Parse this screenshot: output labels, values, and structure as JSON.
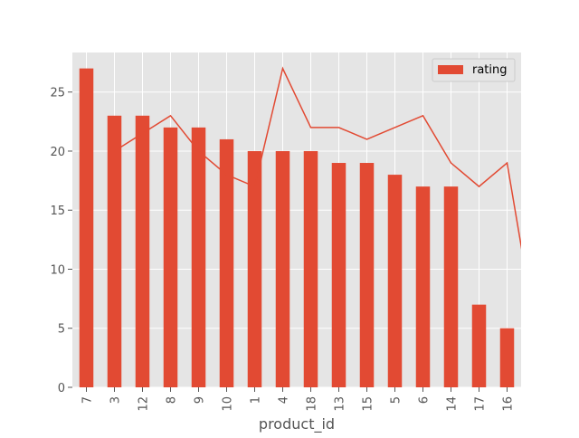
{
  "chart_data": {
    "type": "bar",
    "style": "ggplot",
    "xlabel": "product_id",
    "ylabel": "",
    "ylim": [
      0,
      28.35
    ],
    "yticks": [
      0,
      5,
      10,
      15,
      20,
      25
    ],
    "grid": true,
    "legend": {
      "position": "upper right",
      "entries": [
        "rating"
      ]
    },
    "categories": [
      "7",
      "3",
      "12",
      "8",
      "9",
      "10",
      "1",
      "4",
      "18",
      "13",
      "15",
      "5",
      "6",
      "14",
      "17",
      "16"
    ],
    "series": [
      {
        "name": "rating",
        "type": "bar",
        "color": "#E24A33",
        "values": [
          27,
          23,
          23,
          22,
          22,
          21,
          20,
          20,
          20,
          19,
          19,
          18,
          17,
          17,
          7,
          5
        ]
      }
    ],
    "overlay_line": {
      "color": "#E24A33",
      "note": "line plotted against numeric product_id as x on the same categorical axis",
      "x": [
        1,
        3,
        4,
        5,
        6,
        7,
        8,
        9,
        10,
        12,
        13,
        14,
        15,
        16,
        17,
        18
      ],
      "y": [
        20,
        23,
        20,
        18,
        17,
        27,
        22,
        22,
        21,
        23,
        19,
        17,
        19,
        5,
        7,
        20
      ]
    }
  },
  "colors": {
    "bar": "#E24A33",
    "plot_background": "#E5E5E5",
    "grid": "#FFFFFF",
    "tick_text": "#555555",
    "label_text": "#555555"
  }
}
